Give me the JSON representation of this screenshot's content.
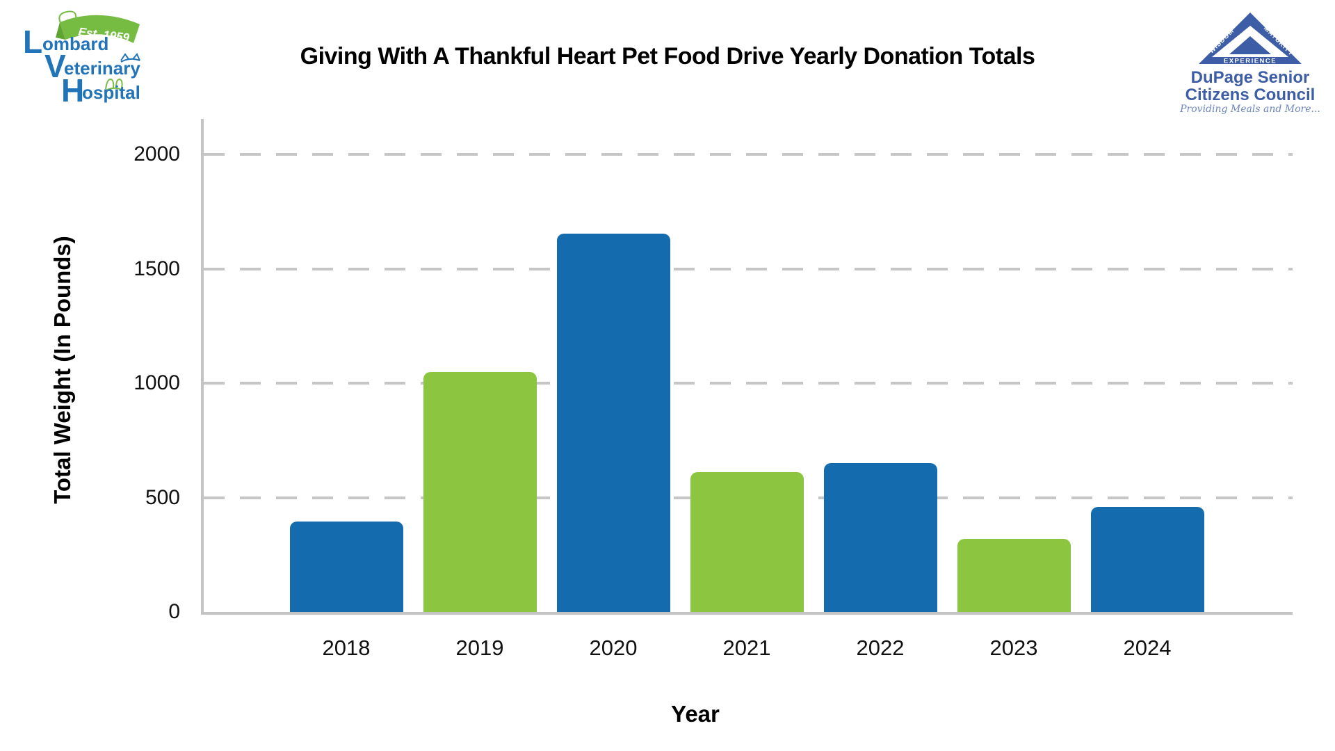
{
  "header": {
    "title": "Giving With A Thankful Heart Pet Food Drive Yearly Donation Totals"
  },
  "logo_left": {
    "name": "Lombard Veterinary Hospital",
    "line1_initial": "L",
    "line1_rest": "ombard",
    "line2_initial": "V",
    "line2_rest": "eterinary",
    "line3_initial": "H",
    "line3_rest": "ospital",
    "banner": "Est. 1959",
    "blue": "#2274B9",
    "green": "#76BC43"
  },
  "logo_right": {
    "name": "DuPage Senior Citizens Council",
    "triangle_words": {
      "left": "WISDOM",
      "right": "MATURITY",
      "bottom": "EXPERIENCE"
    },
    "org_line1": "DuPage Senior",
    "org_line2": "Citizens Council",
    "tagline": "Providing Meals and More...",
    "blue": "#3D5EA6",
    "tagline_blue": "#6C86BC"
  },
  "chart_data": {
    "type": "bar",
    "title": "Giving With A Thankful Heart Pet Food Drive Yearly Donation Totals",
    "categories": [
      "2018",
      "2019",
      "2020",
      "2021",
      "2022",
      "2023",
      "2024"
    ],
    "values": [
      395,
      1050,
      1655,
      610,
      650,
      320,
      460
    ],
    "xlabel": "Year",
    "ylabel": "Total Weight (In Pounds)",
    "ylim": [
      0,
      2000
    ],
    "yticks": [
      0,
      500,
      1000,
      1500,
      2000
    ],
    "grid": "horizontal-dashed",
    "legend": "none",
    "bar_color_pattern": [
      "#146BAD",
      "#8CC540"
    ],
    "colors": {
      "bar_blue": "#146BAD",
      "bar_green": "#8CC540",
      "axis": "#C4C4C4",
      "gridline": "#C6C6C6",
      "text": "#111111"
    }
  }
}
